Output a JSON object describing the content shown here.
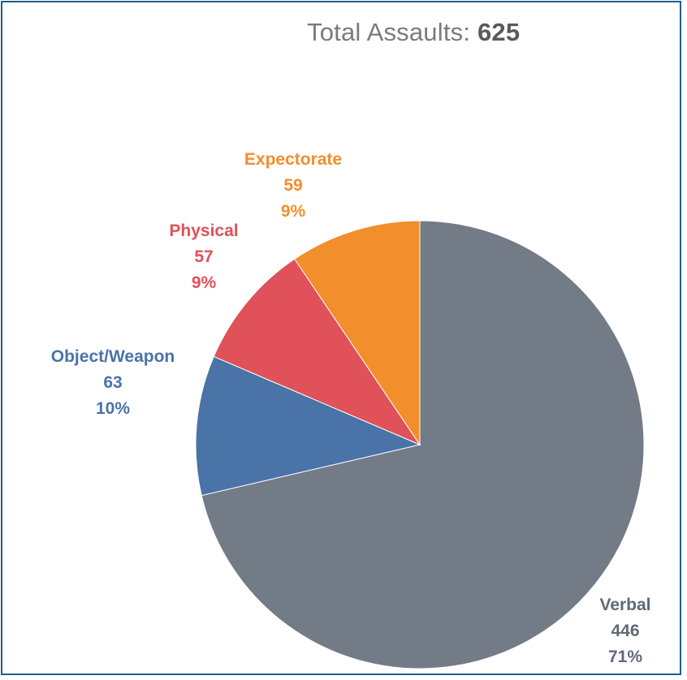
{
  "header": {
    "title_prefix": "Total Assaults: ",
    "title_value": "625"
  },
  "chart_data": {
    "type": "pie",
    "title": "Total Assaults: 625",
    "total": 625,
    "slices": [
      {
        "name": "Verbal",
        "value": 446,
        "percent": "71%",
        "color": "#737b87"
      },
      {
        "name": "Object/Weapon",
        "value": 63,
        "percent": "10%",
        "color": "#4a73a7"
      },
      {
        "name": "Physical",
        "value": 57,
        "percent": "9%",
        "color": "#e05159"
      },
      {
        "name": "Expectorate",
        "value": 59,
        "percent": "9%",
        "color": "#f28e2b"
      }
    ],
    "label_colors": {
      "Verbal": "#5f6a78",
      "Object/Weapon": "#4a73a7",
      "Physical": "#e05159",
      "Expectorate": "#f28e2b"
    },
    "start": "12 o'clock",
    "direction": "clockwise",
    "legend": "none"
  }
}
